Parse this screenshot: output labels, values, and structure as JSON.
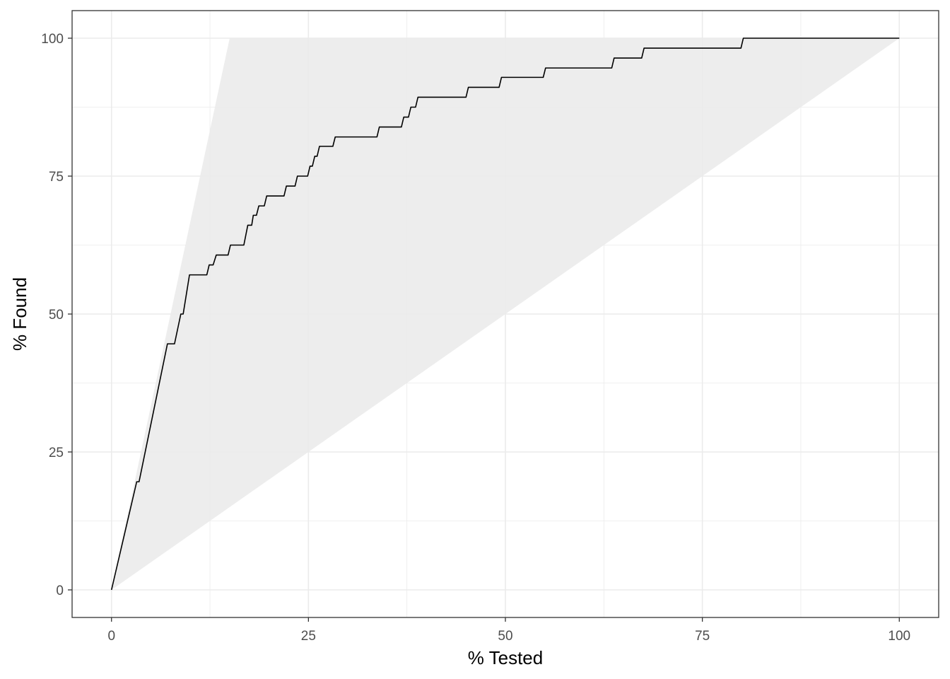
{
  "chart_data": {
    "type": "line",
    "title": "",
    "xlabel": "% Tested",
    "ylabel": "% Found",
    "xlim": [
      -5,
      105
    ],
    "ylim": [
      -5,
      105
    ],
    "x_ticks": [
      0,
      25,
      50,
      75,
      100
    ],
    "y_ticks": [
      0,
      25,
      50,
      75,
      100
    ],
    "x_minor_ticks": [
      12.5,
      37.5,
      62.5,
      87.5
    ],
    "y_minor_ticks": [
      12.5,
      37.5,
      62.5,
      87.5
    ],
    "grid": true,
    "legend": "none",
    "band": {
      "color": "#ebebeb",
      "points": [
        [
          0,
          0
        ],
        [
          15,
          100
        ],
        [
          100,
          100
        ],
        [
          0,
          0
        ]
      ]
    },
    "series": [
      {
        "color": "#000000",
        "points": [
          [
            0,
            0
          ],
          [
            3.2,
            19.6
          ],
          [
            3.5,
            19.6
          ],
          [
            7.1,
            44.6
          ],
          [
            8.0,
            44.6
          ],
          [
            8.8,
            50
          ],
          [
            9.1,
            50
          ],
          [
            9.9,
            57.1
          ],
          [
            12.1,
            57.1
          ],
          [
            12.4,
            58.9
          ],
          [
            12.9,
            58.9
          ],
          [
            13.3,
            60.7
          ],
          [
            14.8,
            60.7
          ],
          [
            15.1,
            62.5
          ],
          [
            16.8,
            62.5
          ],
          [
            17.3,
            66.1
          ],
          [
            17.8,
            66.1
          ],
          [
            18.0,
            67.9
          ],
          [
            18.4,
            67.9
          ],
          [
            18.7,
            69.6
          ],
          [
            19.4,
            69.6
          ],
          [
            19.7,
            71.4
          ],
          [
            21.9,
            71.4
          ],
          [
            22.2,
            73.2
          ],
          [
            23.3,
            73.2
          ],
          [
            23.6,
            75.0
          ],
          [
            24.9,
            75.0
          ],
          [
            25.2,
            76.8
          ],
          [
            25.5,
            76.8
          ],
          [
            25.8,
            78.6
          ],
          [
            26.1,
            78.6
          ],
          [
            26.4,
            80.4
          ],
          [
            28.1,
            80.4
          ],
          [
            28.4,
            82.1
          ],
          [
            33.7,
            82.1
          ],
          [
            34.0,
            83.9
          ],
          [
            36.8,
            83.9
          ],
          [
            37.1,
            85.7
          ],
          [
            37.7,
            85.7
          ],
          [
            38.0,
            87.5
          ],
          [
            38.6,
            87.5
          ],
          [
            38.9,
            89.3
          ],
          [
            45.0,
            89.3
          ],
          [
            45.3,
            91.1
          ],
          [
            49.2,
            91.1
          ],
          [
            49.5,
            92.9
          ],
          [
            54.8,
            92.9
          ],
          [
            55.1,
            94.6
          ],
          [
            63.5,
            94.6
          ],
          [
            63.8,
            96.4
          ],
          [
            67.3,
            96.4
          ],
          [
            67.6,
            98.2
          ],
          [
            79.9,
            98.2
          ],
          [
            80.2,
            100
          ],
          [
            100,
            100
          ]
        ]
      }
    ]
  }
}
